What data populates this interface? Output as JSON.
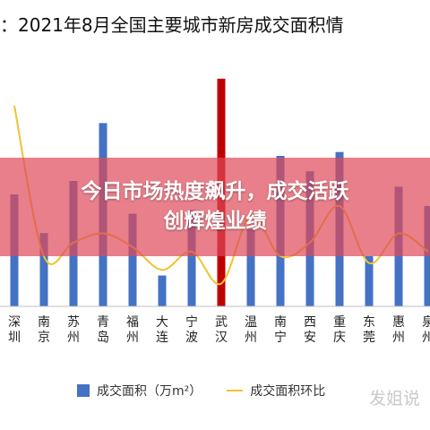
{
  "title": "：2021年8月全国主要城市新房成交面积情",
  "banner": {
    "line1": "今日市场热度飙升，成交活跃",
    "line2": "创辉煌业绩"
  },
  "legend": {
    "bar_label": "成交面积（万m²）",
    "line_label": "成交面积环比"
  },
  "watermark": "发姐说",
  "colors": {
    "bar": "#4472c4",
    "highlight_bar": "#c00000",
    "line": "#f2c230",
    "banner": "#de4858"
  },
  "chart_data": {
    "type": "bar",
    "title": "",
    "categories": [
      "深圳",
      "南京",
      "苏州",
      "青岛",
      "福州",
      "大连",
      "宁波",
      "武汉",
      "温州",
      "南宁",
      "西安",
      "重庆",
      "东莞",
      "惠州",
      "泉州"
    ],
    "series": [
      {
        "name": "成交面积（万m²）",
        "values": [
          58,
          38,
          65,
          95,
          48,
          16,
          50,
          118,
          40,
          78,
          70,
          80,
          26,
          62,
          52
        ]
      },
      {
        "name": "成交面积环比",
        "type": "line",
        "values": [
          78,
          12,
          18,
          22,
          16,
          6,
          14,
          0,
          30,
          12,
          18,
          34,
          9,
          22,
          14
        ]
      }
    ],
    "highlight_category": "武汉",
    "ylim": [
      0,
      130
    ],
    "line_ylim": [
      -10,
      100
    ],
    "grid": false,
    "legend_position": "bottom"
  }
}
